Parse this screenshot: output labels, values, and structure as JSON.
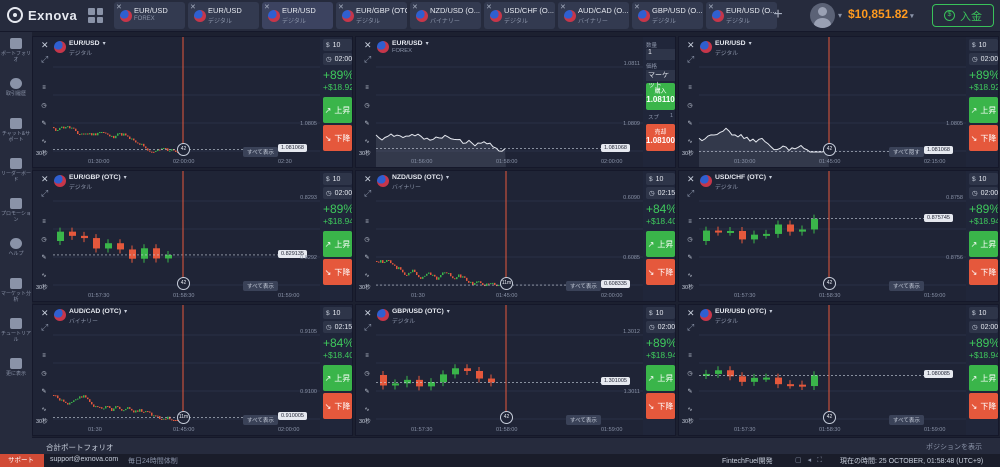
{
  "app": {
    "name": "Exnova"
  },
  "tabs": [
    {
      "name": "EUR/USD",
      "type": "FOREX"
    },
    {
      "name": "EUR/USD",
      "type": "デジタル"
    },
    {
      "name": "EUR/USD",
      "type": "デジタル"
    },
    {
      "name": "EUR/GBP (OTC)",
      "type": "デジタル"
    },
    {
      "name": "NZD/USD (O...",
      "type": "バイナリー"
    },
    {
      "name": "USD/CHF (O...",
      "type": "デジタル"
    },
    {
      "name": "AUD/CAD (O...",
      "type": "バイナリー"
    },
    {
      "name": "GBP/USD (O...",
      "type": "デジタル"
    },
    {
      "name": "EUR/USD (O...",
      "type": "デジタル"
    }
  ],
  "header": {
    "add_tab": "+",
    "balance": "$10,851.82",
    "deposit": "入金"
  },
  "sidebar": [
    {
      "label": "ポートフォリオ",
      "icon": "briefcase-icon"
    },
    {
      "label": "取引履歴",
      "icon": "history-icon"
    },
    {
      "label": "チャット&サポート",
      "icon": "chat-icon"
    },
    {
      "label": "リーダーボード",
      "icon": "trophy-icon"
    },
    {
      "label": "プロモーション",
      "icon": "rocket-icon"
    },
    {
      "label": "ヘルプ",
      "icon": "help-icon"
    },
    {
      "label": "マーケット分析",
      "icon": "analysis-icon"
    },
    {
      "label": "チュートリアル",
      "icon": "graduation-icon"
    },
    {
      "label": "更に表示",
      "icon": "more-icon"
    }
  ],
  "panels": [
    {
      "asset": "EUR/USD",
      "type": "デジタル",
      "mode": "digital",
      "amount": "10",
      "time": "02:00",
      "pct": "+89%",
      "profit": "+$18.92",
      "up": "上昇",
      "down": "下降",
      "price": "1.081068",
      "y_top": "",
      "y_mid": "1.0805",
      "x1": "01:30:00",
      "x2": "02:00:00",
      "x3": "02:30",
      "timer": "42",
      "showall": "すべて表示",
      "tf": "30秒",
      "kind": "candles",
      "color": "#3aa34a"
    },
    {
      "asset": "EUR/USD",
      "type": "FOREX",
      "mode": "forex",
      "qty_label": "数量",
      "qty": "1",
      "limit_label": "価格",
      "limit": "マーケット",
      "buy_label": "購入",
      "buy_price": "1.08110",
      "sell_label": "売却",
      "sell_price": "1.08100",
      "spread_label": "スプ",
      "spread": "1",
      "price": "1.081068",
      "y_top": "1.0811",
      "y_mid": "1.0809",
      "x1": "01:56:00",
      "x2": "01:58:00",
      "x3": "02:00:00",
      "tf": "30秒",
      "kind": "area"
    },
    {
      "asset": "EUR/USD",
      "type": "デジタル",
      "mode": "digital",
      "amount": "10",
      "time": "02:00",
      "pct": "+89%",
      "profit": "+$18.92",
      "up": "上昇",
      "down": "下降",
      "price": "1.081068",
      "y_top": "",
      "y_mid": "1.0805",
      "x1": "01:30:00",
      "x2": "01:45:00",
      "x3": "02:15:00",
      "timer": "42",
      "showall": "すべて隠す",
      "tf": "30秒",
      "kind": "area"
    },
    {
      "asset": "EUR/GBP (OTC)",
      "type": "デジタル",
      "mode": "digital",
      "amount": "10",
      "time": "02:00",
      "pct": "+89%",
      "profit": "+$18.94",
      "up": "上昇",
      "down": "下降",
      "price": "0.829135",
      "y_top": "0.8293",
      "y_mid": "0.8292",
      "x1": "01:57:30",
      "x2": "01:58:30",
      "x3": "01:59:00",
      "timer": "42",
      "showall": "すべて表示",
      "tf": "30秒",
      "kind": "bigcandles",
      "color": "#3aa34a"
    },
    {
      "asset": "NZD/USD (OTC)",
      "type": "バイナリー",
      "mode": "digital",
      "amount": "10",
      "time": "02:15",
      "pct": "+84%",
      "profit": "+$18.40",
      "up": "上昇",
      "down": "下降",
      "price": "0.608335",
      "y_top": "0.6090",
      "y_mid": "0.6085",
      "x1": "01:30",
      "x2": "01:45:00",
      "x3": "02:00:00",
      "timer": "11m",
      "showall": "すべて表示",
      "tf": "30秒",
      "kind": "candles",
      "color": "#3aa34a"
    },
    {
      "asset": "USD/CHF (OTC)",
      "type": "デジタル",
      "mode": "digital",
      "amount": "10",
      "time": "02:00",
      "pct": "+89%",
      "profit": "+$18.94",
      "up": "上昇",
      "down": "下降",
      "price": "0.875745",
      "y_top": "0.8758",
      "y_mid": "0.8756",
      "x1": "01:57:30",
      "x2": "01:58:30",
      "x3": "01:59:00",
      "timer": "42",
      "showall": "すべて表示",
      "tf": "30秒",
      "kind": "bigcandles",
      "color": "#3aa34a"
    },
    {
      "asset": "AUD/CAD (OTC)",
      "type": "バイナリー",
      "mode": "digital",
      "amount": "10",
      "time": "02:15",
      "pct": "+84%",
      "profit": "+$18.40",
      "up": "上昇",
      "down": "下降",
      "price": "0.910005",
      "y_top": "0.9105",
      "y_mid": "0.9100",
      "x1": "01:30",
      "x2": "01:45:00",
      "x3": "02:00:00",
      "timer": "11m",
      "showall": "すべて表示",
      "tf": "30秒",
      "kind": "candles",
      "color": "#3aa34a"
    },
    {
      "asset": "GBP/USD (OTC)",
      "type": "デジタル",
      "mode": "digital",
      "amount": "10",
      "time": "02:00",
      "pct": "+89%",
      "profit": "+$18.94",
      "up": "上昇",
      "down": "下降",
      "price": "1.301005",
      "y_top": "1.3012",
      "y_mid": "1.3011",
      "x1": "01:57:30",
      "x2": "01:58:00",
      "x3": "01:59:00",
      "timer": "42",
      "showall": "すべて表示",
      "tf": "30秒",
      "kind": "bigcandles",
      "color": "#3aa34a"
    },
    {
      "asset": "EUR/USD (OTC)",
      "type": "デジタル",
      "mode": "digital",
      "amount": "10",
      "time": "02:00",
      "pct": "+89%",
      "profit": "+$18.94",
      "up": "上昇",
      "down": "下降",
      "price": "1.080085",
      "y_top": "",
      "y_mid": "",
      "x1": "01:57:30",
      "x2": "01:58:30",
      "x3": "01:59:00",
      "timer": "42",
      "showall": "すべて表示",
      "tf": "30秒",
      "kind": "bigcandles",
      "color": "#3aa34a"
    }
  ],
  "bottom": {
    "portfolio": "合計ポートフォリオ",
    "positions": "ポジションを表示"
  },
  "footer": {
    "support": "サポート",
    "email": "support@exnova.com",
    "hours": "毎日24時間体制",
    "brand": "FintechFuel開発",
    "time": "現在の時間: 25 OCTOBER, 01:58:48 (UTC+9)"
  },
  "colors": {
    "accent": "#ff9a1f",
    "green": "#3ab54a",
    "red": "#e5583c",
    "bg": "#1c2030"
  }
}
